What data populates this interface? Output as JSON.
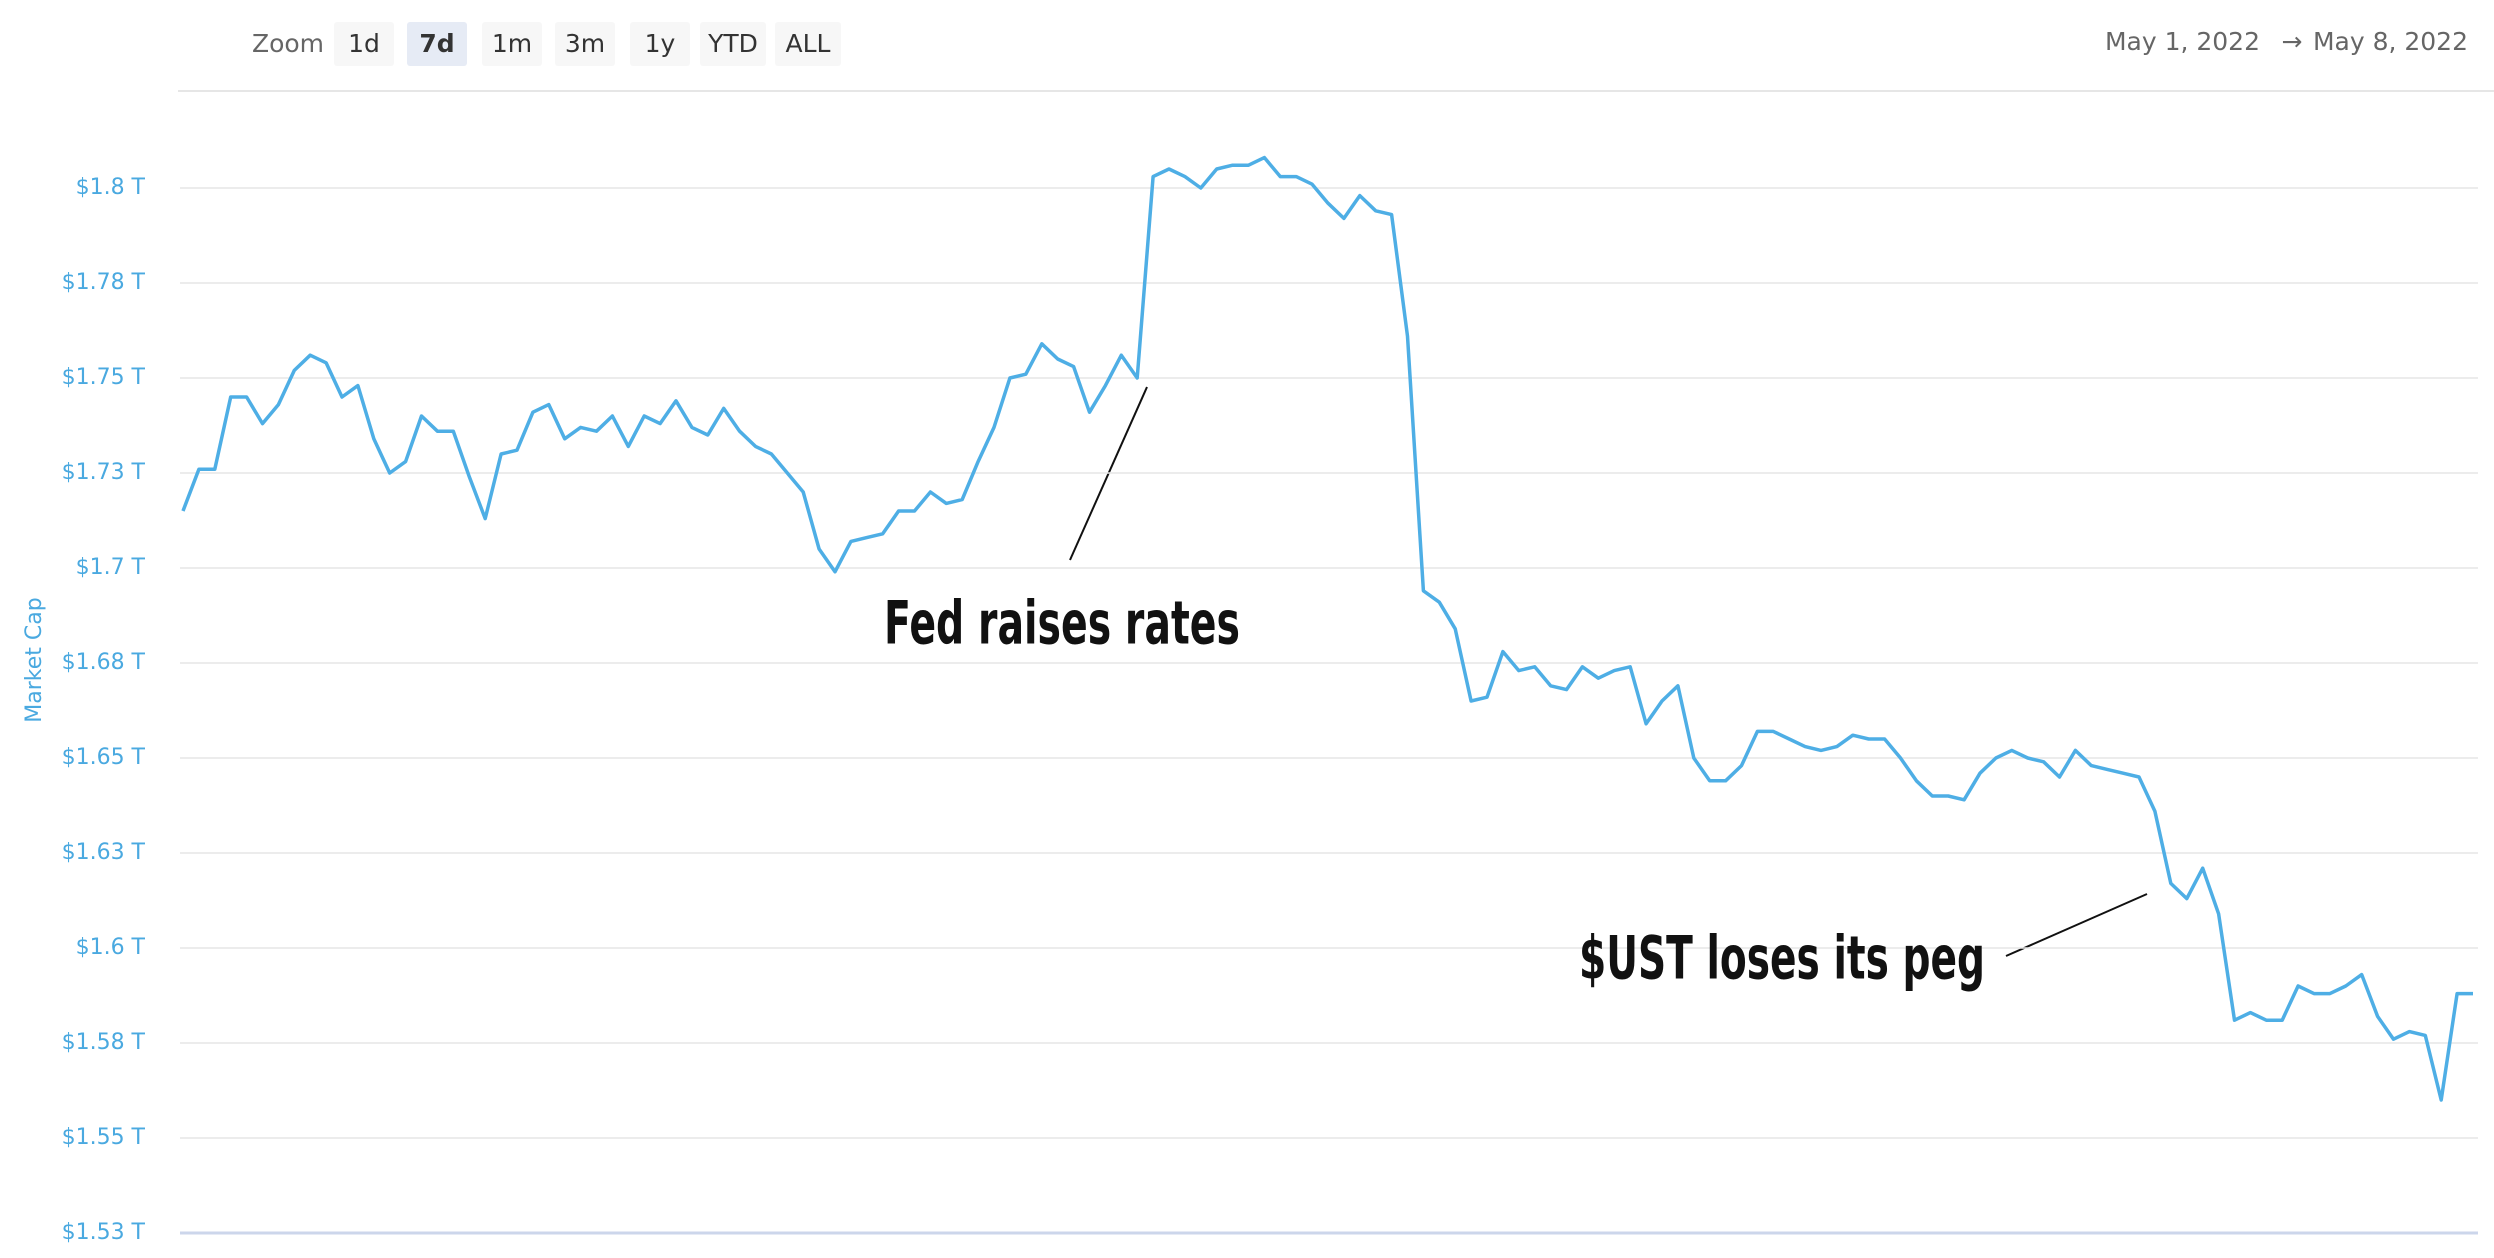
{
  "toolbar": {
    "zoom_label": "Zoom",
    "buttons": [
      "1d",
      "7d",
      "1m",
      "3m",
      "1y",
      "YTD",
      "ALL"
    ],
    "selected": "7d",
    "date_from": "May 1, 2022",
    "arrow": "→",
    "date_to": "May 8, 2022"
  },
  "chart_data": {
    "type": "line",
    "ylabel": "Market Cap",
    "color": "#4eaee5",
    "grid": true,
    "ylim": [
      1.525,
      1.825
    ],
    "yticks": [
      {
        "value": 1.525,
        "label": "$1.53 T"
      },
      {
        "value": 1.55,
        "label": "$1.55 T"
      },
      {
        "value": 1.575,
        "label": "$1.58 T"
      },
      {
        "value": 1.6,
        "label": "$1.6 T"
      },
      {
        "value": 1.625,
        "label": "$1.63 T"
      },
      {
        "value": 1.65,
        "label": "$1.65 T"
      },
      {
        "value": 1.675,
        "label": "$1.68 T"
      },
      {
        "value": 1.7,
        "label": "$1.7 T"
      },
      {
        "value": 1.725,
        "label": "$1.73 T"
      },
      {
        "value": 1.75,
        "label": "$1.75 T"
      },
      {
        "value": 1.775,
        "label": "$1.78 T"
      },
      {
        "value": 1.8,
        "label": "$1.8 T"
      }
    ],
    "annotations": [
      {
        "text": "Fed raises rates"
      },
      {
        "text": "$UST loses its peg"
      }
    ],
    "values": [
      1.715,
      1.726,
      1.726,
      1.745,
      1.745,
      1.738,
      1.743,
      1.752,
      1.756,
      1.754,
      1.745,
      1.748,
      1.734,
      1.725,
      1.728,
      1.74,
      1.736,
      1.736,
      1.724,
      1.713,
      1.73,
      1.731,
      1.741,
      1.743,
      1.734,
      1.737,
      1.736,
      1.74,
      1.732,
      1.74,
      1.738,
      1.744,
      1.737,
      1.735,
      1.742,
      1.736,
      1.732,
      1.73,
      1.725,
      1.72,
      1.705,
      1.699,
      1.707,
      1.708,
      1.709,
      1.715,
      1.715,
      1.72,
      1.717,
      1.718,
      1.728,
      1.737,
      1.75,
      1.751,
      1.759,
      1.755,
      1.753,
      1.741,
      1.748,
      1.756,
      1.75,
      1.803,
      1.805,
      1.803,
      1.8,
      1.805,
      1.806,
      1.806,
      1.808,
      1.803,
      1.803,
      1.801,
      1.796,
      1.792,
      1.798,
      1.794,
      1.793,
      1.761,
      1.694,
      1.691,
      1.684,
      1.665,
      1.666,
      1.678,
      1.673,
      1.674,
      1.669,
      1.668,
      1.674,
      1.671,
      1.673,
      1.674,
      1.659,
      1.665,
      1.669,
      1.65,
      1.644,
      1.644,
      1.648,
      1.657,
      1.657,
      1.655,
      1.653,
      1.652,
      1.653,
      1.656,
      1.655,
      1.655,
      1.65,
      1.644,
      1.64,
      1.64,
      1.639,
      1.646,
      1.65,
      1.652,
      1.65,
      1.649,
      1.645,
      1.652,
      1.648,
      1.647,
      1.646,
      1.645,
      1.636,
      1.617,
      1.613,
      1.621,
      1.609,
      1.581,
      1.583,
      1.581,
      1.581,
      1.59,
      1.588,
      1.588,
      1.59,
      1.593,
      1.582,
      1.576,
      1.578,
      1.577,
      1.56,
      1.588,
      1.588
    ]
  }
}
